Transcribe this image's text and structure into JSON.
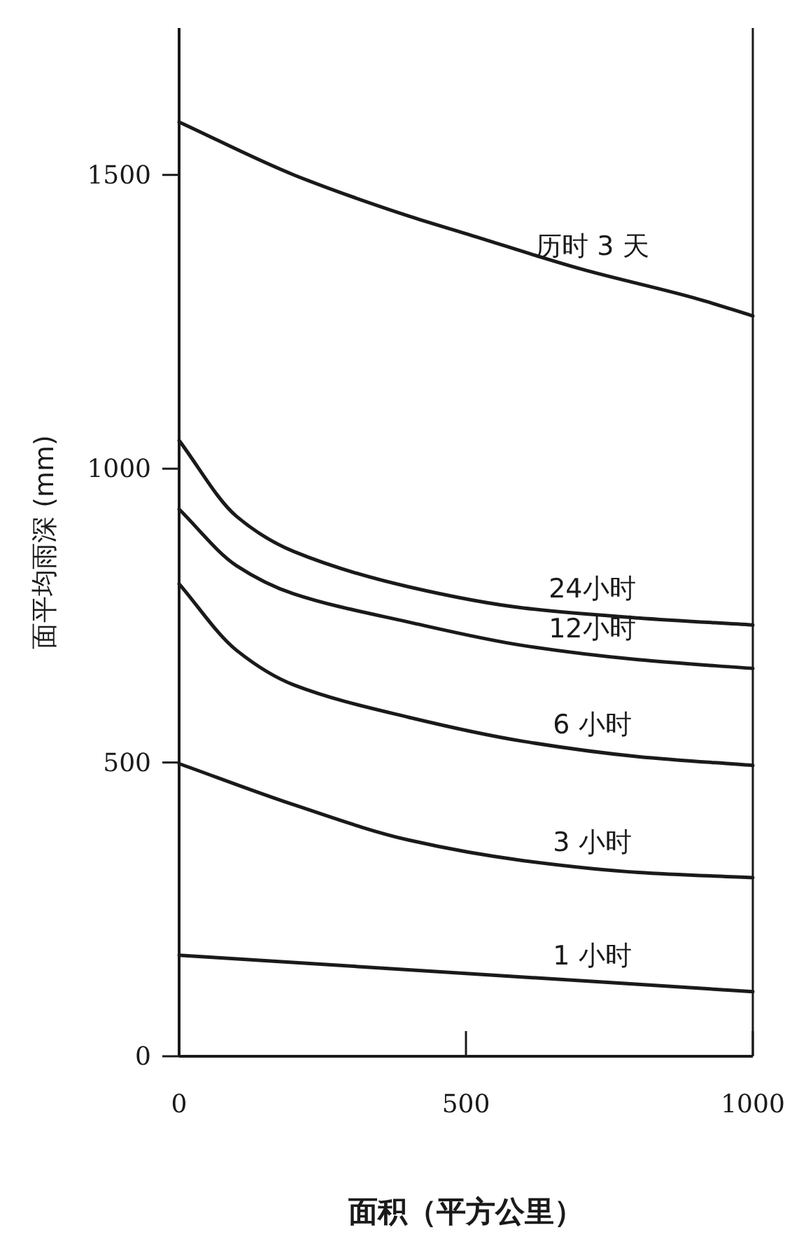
{
  "chart_data": {
    "type": "line",
    "xlabel": "面积（平方公里）",
    "ylabel": "面平均雨深 (mm)",
    "xlim": [
      0,
      1000
    ],
    "ylim": [
      0,
      1750
    ],
    "xticks": [
      0,
      500,
      1000
    ],
    "yticks": [
      0,
      500,
      1000,
      1500
    ],
    "series": [
      {
        "name": "历时 3 天",
        "color": "#1a1a1a",
        "x": [
          0,
          200,
          400,
          500,
          700,
          900,
          1000
        ],
        "values": [
          1590,
          1500,
          1430,
          1400,
          1340,
          1290,
          1260
        ]
      },
      {
        "name": "24小时",
        "color": "#1a1a1a",
        "x": [
          0,
          100,
          200,
          400,
          600,
          800,
          1000
        ],
        "values": [
          1048,
          919,
          859,
          799,
          763,
          746,
          734
        ]
      },
      {
        "name": "12小时",
        "color": "#1a1a1a",
        "x": [
          0,
          100,
          200,
          400,
          600,
          800,
          1000
        ],
        "values": [
          931,
          835,
          787,
          739,
          699,
          675,
          660
        ]
      },
      {
        "name": "6 小时",
        "color": "#1a1a1a",
        "x": [
          0,
          100,
          200,
          400,
          600,
          800,
          1000
        ],
        "values": [
          804,
          691,
          632,
          577,
          536,
          510,
          495
        ]
      },
      {
        "name": "3 小时",
        "color": "#1a1a1a",
        "x": [
          0,
          200,
          400,
          600,
          800,
          1000
        ],
        "values": [
          498,
          428,
          368,
          333,
          313,
          304
        ]
      },
      {
        "name": "1 小时",
        "color": "#1a1a1a",
        "x": [
          0,
          500,
          1000
        ],
        "values": [
          172,
          141,
          110
        ]
      }
    ]
  }
}
